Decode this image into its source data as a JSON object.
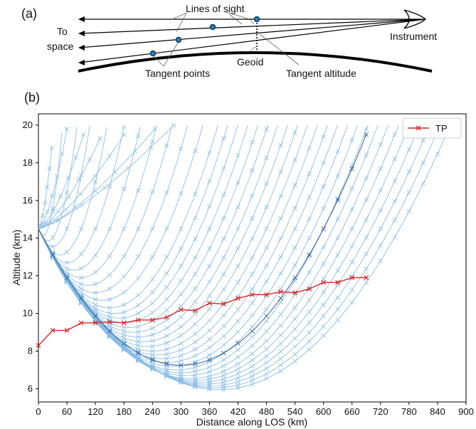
{
  "panel_a": {
    "label": "(a)",
    "annotations": {
      "lines_of_sight": "Lines of sight",
      "to": "To",
      "space": "space",
      "instrument": "Instrument",
      "geoid": "Geoid",
      "tangent_points": "Tangent points",
      "tangent_altitude": "Tangent altitude"
    }
  },
  "panel_b": {
    "label": "(b)"
  },
  "colors": {
    "los_curves": "#88bde6",
    "los_curves_highlight": "#2f5f9e",
    "tp_series": "#d62728",
    "axes": "#000000"
  },
  "chart_data": {
    "type": "line",
    "xlabel": "Distance along LOS (km)",
    "ylabel": "Altitude (km)",
    "xlim": [
      0,
      900
    ],
    "ylim": [
      5.3,
      20.6
    ],
    "x_ticks": [
      "0",
      "60",
      "120",
      "180",
      "240",
      "300",
      "360",
      "420",
      "480",
      "540",
      "600",
      "660",
      "720",
      "780",
      "840",
      "900"
    ],
    "y_ticks": [
      "6",
      "8",
      "10",
      "12",
      "14",
      "16",
      "18",
      "20"
    ],
    "legend": {
      "position": "top-right",
      "entries": [
        "TP"
      ]
    },
    "grid": false,
    "series": [
      {
        "name": "TP",
        "color": "#d62728",
        "marker": "x",
        "x": [
          0,
          30,
          60,
          90,
          120,
          150,
          180,
          210,
          240,
          270,
          300,
          330,
          360,
          390,
          420,
          450,
          480,
          510,
          540,
          570,
          600,
          630,
          660,
          690
        ],
        "y": [
          8.3,
          9.1,
          9.1,
          9.5,
          9.5,
          9.55,
          9.5,
          9.65,
          9.65,
          9.8,
          10.2,
          10.15,
          10.55,
          10.5,
          10.8,
          11.0,
          11.0,
          11.15,
          11.1,
          11.3,
          11.65,
          11.65,
          11.9,
          11.9
        ]
      }
    ],
    "los_curves": {
      "description": "Family of lines of sight from instrument at 14.5 km",
      "origin_altitude_km": 14.5,
      "marker": "x",
      "marker_spacing_km": 30,
      "tangent_distance_km": [
        0,
        10,
        20,
        30,
        45,
        60,
        75,
        90,
        105,
        120,
        135,
        150,
        160,
        170,
        180,
        190,
        200,
        210,
        220,
        230,
        240,
        250,
        260,
        270,
        280,
        290,
        300,
        310,
        320,
        330,
        340,
        350,
        360,
        370,
        380
      ],
      "tangent_altitude_km": [
        14.5,
        14.15,
        13.85,
        13.55,
        13.1,
        12.7,
        12.3,
        11.9,
        11.5,
        11.1,
        10.7,
        10.3,
        10.0,
        9.75,
        9.5,
        9.25,
        9.0,
        8.75,
        8.5,
        8.25,
        8.0,
        7.8,
        7.6,
        7.4,
        7.2,
        7.0,
        6.85,
        6.7,
        6.55,
        6.45,
        6.35,
        6.25,
        6.15,
        6.05,
        5.95
      ],
      "end_altitude_km": 20.0
    },
    "highlight_curve": {
      "tangent_distance_km": 300,
      "tangent_altitude_km": 7.25,
      "end_distance_km": 690,
      "end_altitude_km": 18.9
    }
  }
}
